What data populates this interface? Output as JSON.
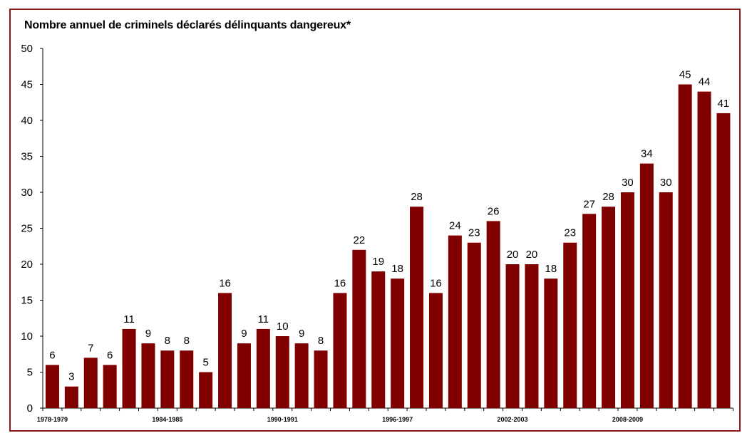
{
  "chart_data": {
    "type": "bar",
    "title": "Nombre annuel de criminels déclarés délinquants dangereux*",
    "xlabel": "",
    "ylabel": "",
    "ylim": [
      0,
      50
    ],
    "yticks": [
      0,
      5,
      10,
      15,
      20,
      25,
      30,
      35,
      40,
      45,
      50
    ],
    "xtick_labels": [
      {
        "index": 0,
        "label": "1978-1979"
      },
      {
        "index": 6,
        "label": "1984-1985"
      },
      {
        "index": 12,
        "label": "1990-1991"
      },
      {
        "index": 18,
        "label": "1996-1997"
      },
      {
        "index": 24,
        "label": "2002-2003"
      },
      {
        "index": 30,
        "label": "2008-2009"
      }
    ],
    "values": [
      6,
      3,
      7,
      6,
      11,
      9,
      8,
      8,
      5,
      16,
      9,
      11,
      10,
      9,
      8,
      16,
      22,
      19,
      18,
      28,
      16,
      24,
      23,
      26,
      20,
      20,
      18,
      23,
      27,
      28,
      30,
      34,
      30,
      45,
      44,
      41
    ],
    "bar_color": "#800000",
    "frame_color": "#8a1a1a",
    "grid": false,
    "legend": "none"
  }
}
